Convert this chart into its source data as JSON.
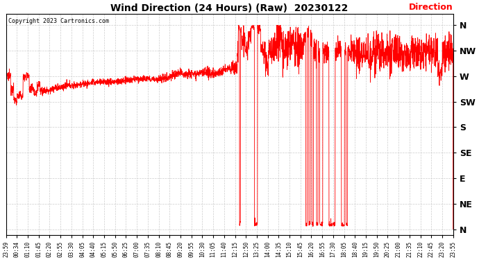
{
  "title": "Wind Direction (24 Hours) (Raw)  20230122",
  "copyright_text": "Copyright 2023 Cartronics.com",
  "legend_label": "Direction",
  "background_color": "#ffffff",
  "plot_bg_color": "#ffffff",
  "grid_color": "#cccccc",
  "line_color": "#ff0000",
  "title_color": "#000000",
  "copyright_color": "#000000",
  "legend_color": "#ff0000",
  "ytick_labels": [
    "N",
    "NW",
    "W",
    "SW",
    "S",
    "SE",
    "E",
    "NE",
    "N"
  ],
  "ytick_values": [
    360,
    315,
    270,
    225,
    180,
    135,
    90,
    45,
    0
  ],
  "ylim": [
    -10,
    380
  ],
  "x_labels": [
    "23:59",
    "00:34",
    "01:10",
    "01:45",
    "02:20",
    "02:55",
    "03:30",
    "04:05",
    "04:40",
    "05:15",
    "05:50",
    "06:25",
    "07:00",
    "07:35",
    "08:10",
    "08:45",
    "09:20",
    "09:55",
    "10:30",
    "11:05",
    "11:40",
    "12:15",
    "12:50",
    "13:25",
    "14:00",
    "14:35",
    "15:10",
    "15:45",
    "16:20",
    "16:55",
    "17:30",
    "18:05",
    "18:40",
    "19:15",
    "19:50",
    "20:25",
    "21:00",
    "21:35",
    "22:10",
    "22:45",
    "23:20",
    "23:55"
  ],
  "seed": 12345
}
